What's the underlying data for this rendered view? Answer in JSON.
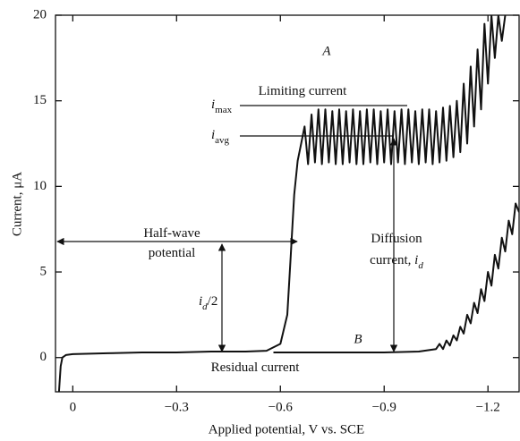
{
  "chart_data": {
    "type": "line",
    "x_label": "Applied potential, V vs. SCE",
    "y_label": "Current, μA",
    "xlim": [
      0.05,
      -1.29
    ],
    "ylim": [
      -2,
      20
    ],
    "xticks": [
      0,
      {
        "value": -0.3,
        "label": "−0.3"
      },
      {
        "value": -0.6,
        "label": "−0.6"
      },
      {
        "value": -0.9,
        "label": "−0.9"
      },
      {
        "value": -1.2,
        "label": "−1.2"
      }
    ],
    "yticks": [
      0,
      5,
      10,
      15,
      20
    ],
    "grid": false,
    "series": [
      {
        "name": "A",
        "color": "#111111",
        "x": [
          0.04,
          0.035,
          0.03,
          0.02,
          0,
          -0.1,
          -0.2,
          -0.3,
          -0.4,
          -0.5,
          -0.56,
          -0.6,
          -0.62,
          -0.63,
          -0.64,
          -0.65,
          -0.66,
          -0.67,
          -0.68,
          -0.69,
          -0.7,
          -0.71,
          -0.72,
          -0.73,
          -0.74,
          -0.75,
          -0.76,
          -0.77,
          -0.78,
          -0.79,
          -0.8,
          -0.81,
          -0.82,
          -0.83,
          -0.84,
          -0.85,
          -0.86,
          -0.87,
          -0.88,
          -0.89,
          -0.9,
          -0.91,
          -0.92,
          -0.93,
          -0.94,
          -0.95,
          -0.96,
          -0.97,
          -0.98,
          -0.99,
          -1.0,
          -1.01,
          -1.02,
          -1.03,
          -1.04,
          -1.05,
          -1.06,
          -1.07,
          -1.08,
          -1.09,
          -1.1,
          -1.11,
          -1.12,
          -1.13,
          -1.14,
          -1.15,
          -1.16,
          -1.17,
          -1.18,
          -1.19,
          -1.2,
          -1.21,
          -1.22,
          -1.23,
          -1.24,
          -1.25
        ],
        "values": [
          -2,
          -0.5,
          0,
          0.15,
          0.2,
          0.25,
          0.3,
          0.3,
          0.35,
          0.35,
          0.4,
          0.8,
          2.5,
          6,
          9.5,
          11.5,
          12.5,
          13.5,
          11.3,
          14.2,
          11.4,
          14.5,
          11.3,
          14.5,
          11.4,
          14.4,
          11.3,
          14.5,
          11.3,
          14.4,
          11.4,
          14.5,
          11.3,
          14.4,
          11.3,
          14.5,
          11.4,
          14.5,
          11.3,
          14.4,
          11.4,
          14.5,
          11.3,
          14.4,
          11.4,
          14.5,
          11.3,
          14.5,
          11.4,
          14.4,
          11.3,
          14.5,
          11.4,
          14.5,
          11.3,
          14.4,
          11.4,
          14.6,
          11.5,
          14.7,
          11.7,
          15,
          12,
          16,
          12.5,
          17,
          13.5,
          18,
          14.5,
          19.5,
          16,
          20,
          17.5,
          20,
          18.5,
          20
        ]
      },
      {
        "name": "B",
        "color": "#111111",
        "x": [
          -0.58,
          -0.7,
          -0.8,
          -0.9,
          -1.0,
          -1.05,
          -1.06,
          -1.07,
          -1.08,
          -1.09,
          -1.1,
          -1.11,
          -1.12,
          -1.13,
          -1.14,
          -1.15,
          -1.16,
          -1.17,
          -1.18,
          -1.19,
          -1.2,
          -1.21,
          -1.22,
          -1.23,
          -1.24,
          -1.25,
          -1.26,
          -1.27,
          -1.28,
          -1.29
        ],
        "values": [
          0.3,
          0.3,
          0.3,
          0.3,
          0.35,
          0.5,
          0.8,
          0.5,
          1.0,
          0.7,
          1.3,
          1.0,
          1.8,
          1.4,
          2.5,
          2.0,
          3.2,
          2.6,
          4,
          3.3,
          5,
          4.2,
          6,
          5.2,
          7,
          6.2,
          8,
          7.2,
          9,
          8.5
        ]
      }
    ],
    "annotations": [
      {
        "parts": [
          {
            "text": "Limiting current"
          }
        ]
      },
      {
        "parts": [
          {
            "text": "i",
            "style": "italic"
          },
          {
            "text": "max",
            "style": "sub"
          }
        ]
      },
      {
        "parts": [
          {
            "text": "i",
            "style": "italic"
          },
          {
            "text": "avg",
            "style": "sub"
          }
        ]
      },
      {
        "parts": [
          {
            "text": "Half-wave"
          }
        ]
      },
      {
        "parts": [
          {
            "text": "potential"
          }
        ]
      },
      {
        "parts": [
          {
            "text": "i",
            "style": "italic"
          },
          {
            "text": "d",
            "style": "italic-sub"
          },
          {
            "text": "/2"
          }
        ]
      },
      {
        "parts": [
          {
            "text": "Diffusion"
          }
        ]
      },
      {
        "parts": [
          {
            "text": "current, "
          },
          {
            "text": "i",
            "style": "italic"
          },
          {
            "text": "d",
            "style": "italic-sub"
          }
        ]
      },
      {
        "parts": [
          {
            "text": "Residual current"
          }
        ]
      }
    ]
  }
}
